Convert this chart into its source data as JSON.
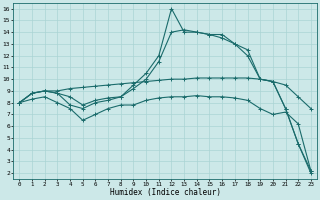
{
  "xlabel": "Humidex (Indice chaleur)",
  "bg_color": "#cce8e8",
  "line_color": "#1a6b6b",
  "grid_color": "#aad4d4",
  "xlim": [
    -0.5,
    23.5
  ],
  "ylim": [
    1.5,
    16.5
  ],
  "xticks": [
    0,
    1,
    2,
    3,
    4,
    5,
    6,
    7,
    8,
    9,
    10,
    11,
    12,
    13,
    14,
    15,
    16,
    17,
    18,
    19,
    20,
    21,
    22,
    23
  ],
  "yticks": [
    2,
    3,
    4,
    5,
    6,
    7,
    8,
    9,
    10,
    11,
    12,
    13,
    14,
    15,
    16
  ],
  "lines": [
    {
      "x": [
        0,
        1,
        2,
        3,
        4,
        5,
        6,
        7,
        8,
        9,
        10,
        11,
        12,
        13,
        14,
        15,
        16,
        17,
        18,
        19,
        20,
        21,
        22,
        23
      ],
      "y": [
        8.0,
        8.8,
        9.0,
        8.8,
        7.8,
        7.5,
        8.0,
        8.2,
        8.5,
        9.5,
        10.5,
        12.0,
        16.0,
        14.0,
        14.0,
        13.8,
        13.5,
        13.0,
        12.5,
        10.0,
        9.8,
        7.5,
        4.5,
        2.0
      ]
    },
    {
      "x": [
        0,
        1,
        2,
        3,
        4,
        5,
        6,
        7,
        8,
        9,
        10,
        11,
        12,
        13,
        14,
        15,
        16,
        17,
        18,
        19,
        20,
        21,
        22,
        23
      ],
      "y": [
        8.0,
        8.8,
        9.0,
        8.8,
        8.5,
        7.8,
        8.2,
        8.4,
        8.5,
        9.2,
        10.0,
        11.5,
        14.0,
        14.2,
        14.0,
        13.8,
        13.8,
        13.0,
        12.0,
        10.0,
        9.8,
        7.5,
        4.5,
        2.2
      ]
    },
    {
      "x": [
        0,
        1,
        2,
        3,
        4,
        5,
        6,
        7,
        8,
        9,
        10,
        11,
        12,
        13,
        14,
        15,
        16,
        17,
        18,
        19,
        20,
        21,
        22,
        23
      ],
      "y": [
        8.0,
        8.8,
        9.0,
        9.0,
        9.2,
        9.3,
        9.4,
        9.5,
        9.6,
        9.7,
        9.8,
        9.9,
        10.0,
        10.0,
        10.1,
        10.1,
        10.1,
        10.1,
        10.1,
        10.0,
        9.8,
        9.5,
        8.5,
        7.5
      ]
    },
    {
      "x": [
        0,
        1,
        2,
        3,
        4,
        5,
        6,
        7,
        8,
        9,
        10,
        11,
        12,
        13,
        14,
        15,
        16,
        17,
        18,
        19,
        20,
        21,
        22,
        23
      ],
      "y": [
        8.0,
        8.3,
        8.5,
        8.0,
        7.5,
        6.5,
        7.0,
        7.5,
        7.8,
        7.8,
        8.2,
        8.4,
        8.5,
        8.5,
        8.6,
        8.5,
        8.5,
        8.4,
        8.2,
        7.5,
        7.0,
        7.2,
        6.2,
        2.2
      ]
    }
  ]
}
